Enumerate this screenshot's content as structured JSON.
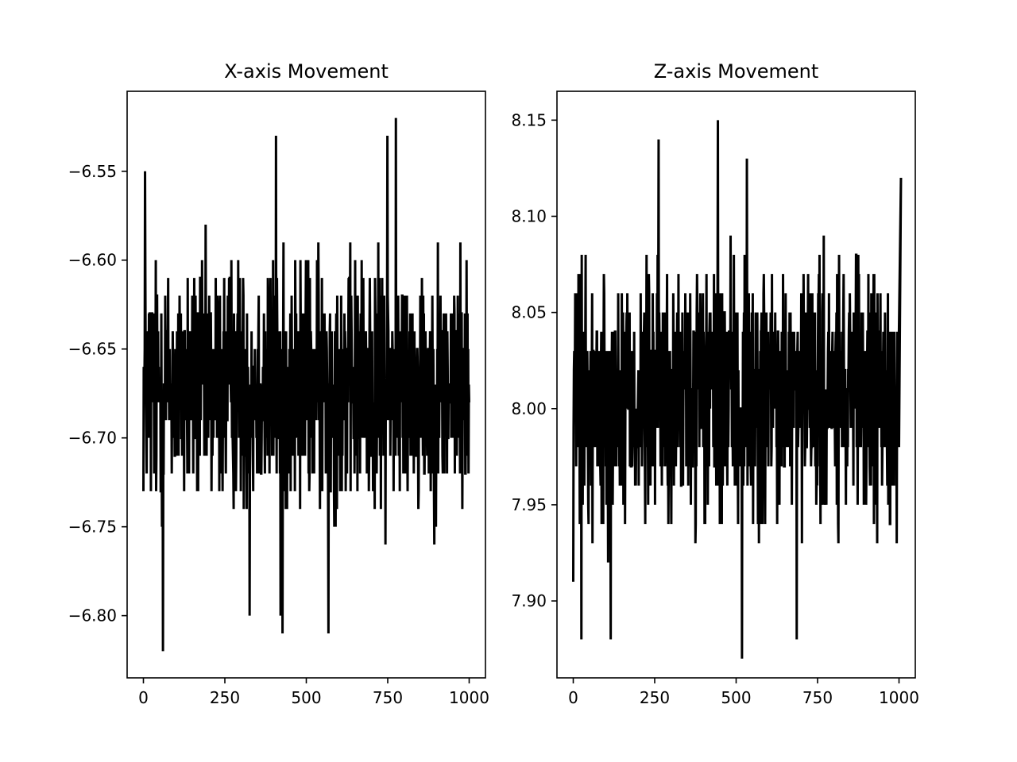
{
  "chart_data": [
    {
      "type": "line",
      "title": "X-axis Movement",
      "xlabel": "",
      "ylabel": "",
      "xlim": [
        -50,
        1050
      ],
      "ylim": [
        -6.835,
        -6.505
      ],
      "xticks": [
        0,
        250,
        500,
        750,
        1000
      ],
      "xtick_labels": [
        "0",
        "250",
        "500",
        "750",
        "1000"
      ],
      "yticks": [
        -6.8,
        -6.75,
        -6.7,
        -6.65,
        -6.6,
        -6.55
      ],
      "ytick_labels": [
        "−6.80",
        "−6.75",
        "−6.70",
        "−6.65",
        "−6.60",
        "−6.55"
      ],
      "grid": false,
      "color": "#000000",
      "series": [
        {
          "n_points": 1000,
          "x_range": [
            0,
            999
          ],
          "typical_range": [
            -6.76,
            -6.58
          ],
          "extremes": [
            {
              "x": 60,
              "y": -6.82
            },
            {
              "x": 427,
              "y": -6.81
            },
            {
              "x": 568,
              "y": -6.81
            },
            {
              "x": 326,
              "y": -6.8
            },
            {
              "x": 421,
              "y": -6.8
            },
            {
              "x": 775,
              "y": -6.52
            },
            {
              "x": 407,
              "y": -6.53
            },
            {
              "x": 749,
              "y": -6.53
            },
            {
              "x": 5,
              "y": -6.55
            },
            {
              "x": 2,
              "y": -6.67
            },
            {
              "x": 1000,
              "y": -6.68
            }
          ]
        }
      ]
    },
    {
      "type": "line",
      "title": "Z-axis Movement",
      "xlabel": "",
      "ylabel": "",
      "xlim": [
        -50,
        1050
      ],
      "ylim": [
        7.86,
        8.165
      ],
      "xticks": [
        0,
        250,
        500,
        750,
        1000
      ],
      "xtick_labels": [
        "0",
        "250",
        "500",
        "750",
        "1000"
      ],
      "yticks": [
        7.9,
        7.95,
        8.0,
        8.05,
        8.1,
        8.15
      ],
      "ytick_labels": [
        "7.90",
        "7.95",
        "8.00",
        "8.05",
        "8.10",
        "8.15"
      ],
      "grid": false,
      "color": "#000000",
      "series": [
        {
          "n_points": 1000,
          "x_range": [
            0,
            999
          ],
          "typical_range": [
            7.92,
            8.09
          ],
          "extremes": [
            {
              "x": 518,
              "y": 7.87
            },
            {
              "x": 25,
              "y": 7.88
            },
            {
              "x": 115,
              "y": 7.88
            },
            {
              "x": 686,
              "y": 7.88
            },
            {
              "x": 444,
              "y": 8.15
            },
            {
              "x": 262,
              "y": 8.14
            },
            {
              "x": 533,
              "y": 8.13
            },
            {
              "x": 1006,
              "y": 8.12
            },
            {
              "x": 0,
              "y": 7.91
            },
            {
              "x": 1000,
              "y": 7.98
            }
          ]
        }
      ]
    }
  ]
}
